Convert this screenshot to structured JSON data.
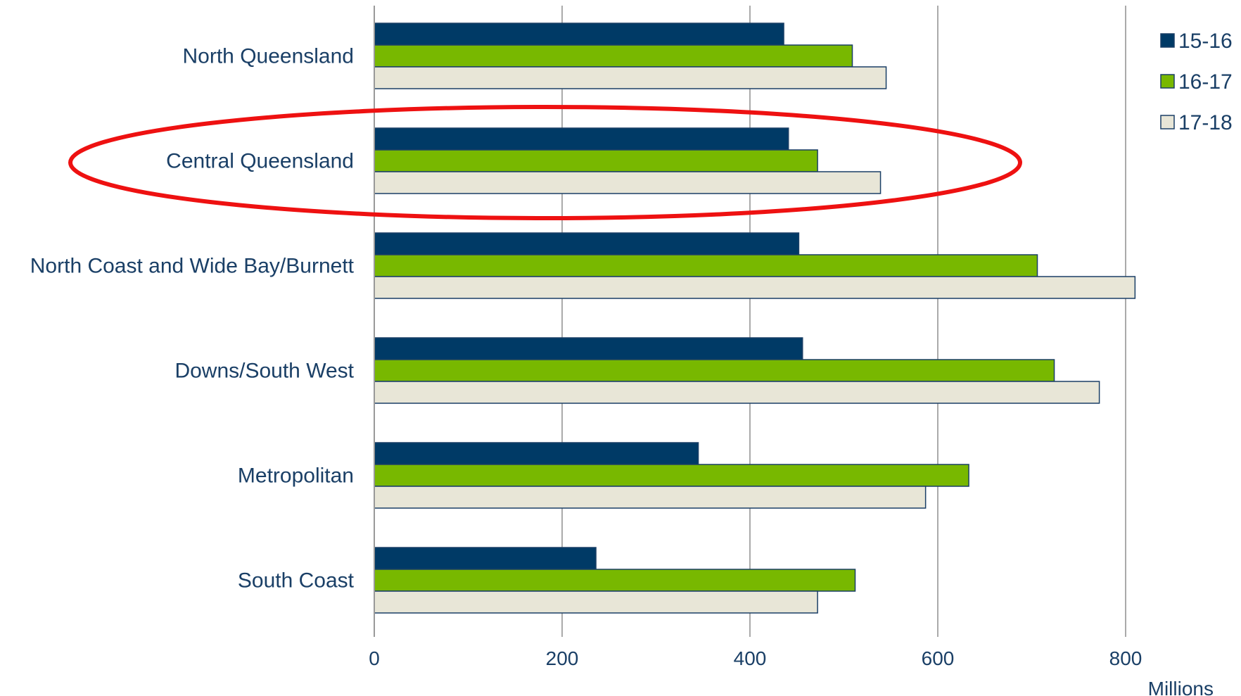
{
  "chart_data": {
    "type": "bar",
    "orientation": "horizontal",
    "categories": [
      "North Queensland",
      "Central Queensland",
      "North Coast and Wide Bay/Burnett",
      "Downs/South West",
      "Metropolitan",
      "South Coast"
    ],
    "series": [
      {
        "name": "15-16",
        "color": "#003a66",
        "values": [
          436,
          441,
          452,
          456,
          345,
          236
        ]
      },
      {
        "name": "16-17",
        "color": "#78b800",
        "values": [
          509,
          472,
          706,
          724,
          633,
          512
        ]
      },
      {
        "name": "17-18",
        "color": "#e8e6d7",
        "values": [
          545,
          539,
          810,
          772,
          587,
          472
        ]
      }
    ],
    "xticks": [
      "0",
      "200",
      "400",
      "600",
      "800"
    ],
    "xlim": [
      0,
      850
    ],
    "unit_label": "Millions",
    "legend_position": "top-right",
    "grid": "vertical",
    "highlight": {
      "category": "Central Queensland",
      "shape": "ellipse",
      "color": "#ee1111"
    }
  }
}
